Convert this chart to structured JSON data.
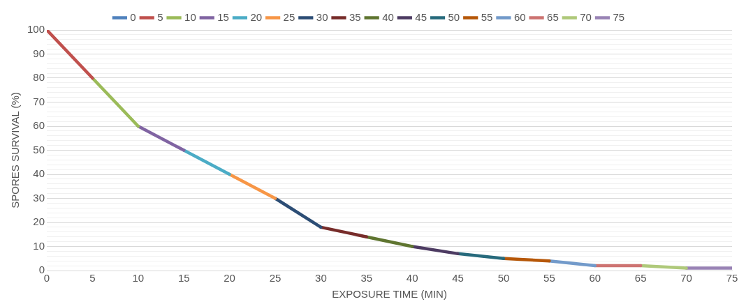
{
  "chart_data": {
    "type": "line",
    "xlabel": "EXPOSURE TIME (MIN)",
    "ylabel": "SPORES SURVIVAL (%)",
    "xlim": [
      0,
      75
    ],
    "xticks": [
      0,
      5,
      10,
      15,
      20,
      25,
      30,
      35,
      40,
      45,
      50,
      55,
      60,
      65,
      70,
      75
    ],
    "ylim": [
      0,
      100
    ],
    "yticks": [
      0,
      {
        "value": 2,
        "label": null
      },
      {
        "value": 4,
        "label": null
      },
      {
        "value": 6,
        "label": null
      },
      {
        "value": 8,
        "label": null
      },
      10,
      {
        "value": 12,
        "label": null
      },
      {
        "value": 14,
        "label": null
      },
      {
        "value": 16,
        "label": null
      },
      {
        "value": 18,
        "label": null
      },
      20,
      {
        "value": 22,
        "label": null
      },
      {
        "value": 24,
        "label": null
      },
      {
        "value": 26,
        "label": null
      },
      {
        "value": 28,
        "label": null
      },
      30,
      {
        "value": 32,
        "label": null
      },
      {
        "value": 34,
        "label": null
      },
      {
        "value": 36,
        "label": null
      },
      {
        "value": 38,
        "label": null
      },
      40,
      {
        "value": 42,
        "label": null
      },
      {
        "value": 44,
        "label": null
      },
      {
        "value": 46,
        "label": null
      },
      {
        "value": 48,
        "label": null
      },
      50,
      {
        "value": 52,
        "label": null
      },
      {
        "value": 54,
        "label": null
      },
      {
        "value": 56,
        "label": null
      },
      {
        "value": 58,
        "label": null
      },
      60,
      {
        "value": 62,
        "label": null
      },
      {
        "value": 64,
        "label": null
      },
      {
        "value": 66,
        "label": null
      },
      {
        "value": 68,
        "label": null
      },
      70,
      {
        "value": 72,
        "label": null
      },
      {
        "value": 74,
        "label": null
      },
      {
        "value": 76,
        "label": null
      },
      {
        "value": 78,
        "label": null
      },
      80,
      {
        "value": 82,
        "label": null
      },
      {
        "value": 84,
        "label": null
      },
      {
        "value": 86,
        "label": null
      },
      {
        "value": 88,
        "label": null
      },
      90,
      {
        "value": 92,
        "label": null
      },
      {
        "value": 94,
        "label": null
      },
      {
        "value": 96,
        "label": null
      },
      {
        "value": 98,
        "label": null
      },
      100
    ],
    "grid": "y",
    "legend": "top",
    "marker": "none",
    "line_style": "solid",
    "series": [
      {
        "name": "0",
        "color": "#4f81bd"
      },
      {
        "name": "5",
        "color": "#c0504d",
        "x": [
          0,
          5
        ],
        "values": [
          100,
          80
        ]
      },
      {
        "name": "10",
        "color": "#9bbb59",
        "x": [
          5,
          10
        ],
        "values": [
          80,
          60
        ]
      },
      {
        "name": "15",
        "color": "#8064a2",
        "x": [
          10,
          15
        ],
        "values": [
          60,
          50
        ]
      },
      {
        "name": "20",
        "color": "#4bacc6",
        "x": [
          15,
          20
        ],
        "values": [
          50,
          40
        ]
      },
      {
        "name": "25",
        "color": "#f79646",
        "x": [
          20,
          25
        ],
        "values": [
          40,
          30
        ]
      },
      {
        "name": "30",
        "color": "#2c4d75",
        "x": [
          25,
          30
        ],
        "values": [
          30,
          18
        ]
      },
      {
        "name": "35",
        "color": "#772c2a",
        "x": [
          30,
          35
        ],
        "values": [
          18,
          14
        ]
      },
      {
        "name": "40",
        "color": "#5f7530",
        "x": [
          35,
          40
        ],
        "values": [
          14,
          10
        ]
      },
      {
        "name": "45",
        "color": "#4d3b62",
        "x": [
          40,
          45
        ],
        "values": [
          10,
          7
        ]
      },
      {
        "name": "50",
        "color": "#276a7c",
        "x": [
          45,
          50
        ],
        "values": [
          7,
          5
        ]
      },
      {
        "name": "55",
        "color": "#b65708",
        "x": [
          50,
          55
        ],
        "values": [
          5,
          4
        ]
      },
      {
        "name": "60",
        "color": "#729aca",
        "x": [
          55,
          60
        ],
        "values": [
          4,
          2
        ]
      },
      {
        "name": "65",
        "color": "#cd7371",
        "x": [
          60,
          65
        ],
        "values": [
          2,
          2
        ]
      },
      {
        "name": "70",
        "color": "#afc97a",
        "x": [
          65,
          70
        ],
        "values": [
          2,
          1
        ]
      },
      {
        "name": "75",
        "color": "#9983b5",
        "x": [
          70,
          75
        ],
        "values": [
          1,
          1
        ]
      }
    ]
  }
}
